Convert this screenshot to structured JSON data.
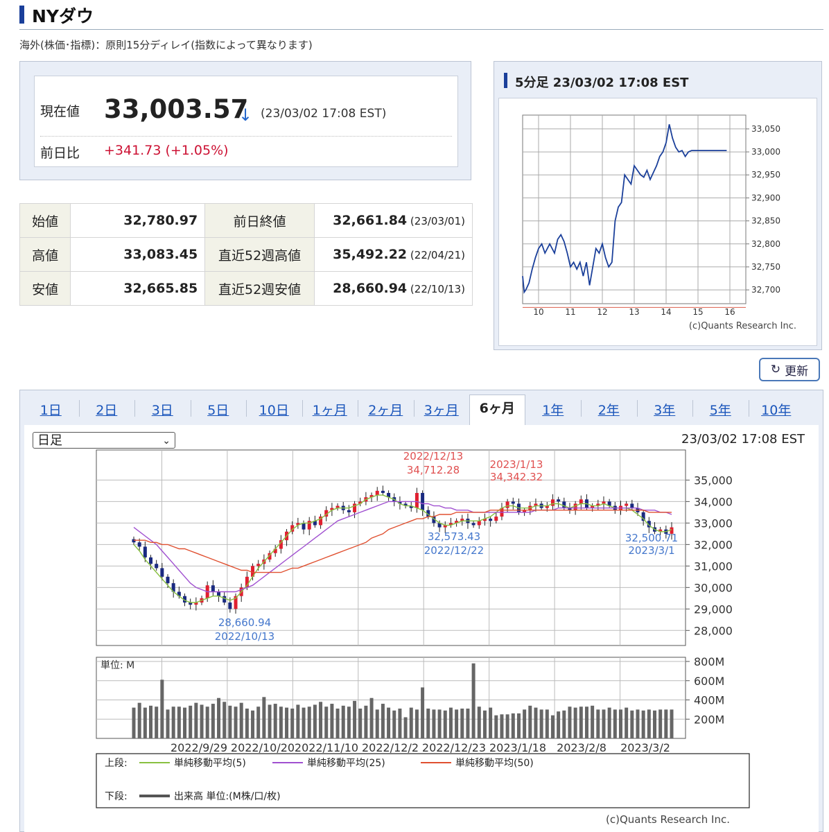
{
  "page": {
    "title": "NYダウ",
    "note": "海外(株価･指標)：原則15分ディレイ(指数によって異なります)"
  },
  "quote": {
    "current_label": "現在値",
    "current_value": "33,003.57",
    "arrow": "↓",
    "current_time": "(23/03/02 17:08 EST)",
    "change_label": "前日比",
    "change_value": "+341.73 (+1.05%)",
    "change_color": "#cc1133"
  },
  "stats": [
    {
      "l1": "始値",
      "v1": "32,780.97",
      "l2": "前日終値",
      "v2": "32,661.84",
      "d2": "(23/03/01)"
    },
    {
      "l1": "高値",
      "v1": "33,083.45",
      "l2": "直近52週高値",
      "v2": "35,492.22",
      "d2": "(22/04/21)"
    },
    {
      "l1": "安値",
      "v1": "32,665.85",
      "l2": "直近52週安値",
      "v2": "28,660.94",
      "d2": "(22/10/13)"
    }
  ],
  "intraday": {
    "title": "5分足 23/03/02 17:08 EST",
    "credit": "(c)Quants Research Inc.",
    "chart_data": {
      "type": "line",
      "x_ticks": [
        "10",
        "11",
        "12",
        "13",
        "14",
        "15",
        "16"
      ],
      "y_ticks": [
        "33,050",
        "33,000",
        "32,950",
        "32,900",
        "32,850",
        "32,800",
        "32,750",
        "32,700"
      ],
      "ylim": [
        32670,
        33080
      ],
      "xlim": [
        9.5,
        16.5
      ],
      "prev_close": 32661.84,
      "series_color": "#1a3f9a",
      "x": [
        9.5,
        9.55,
        9.6,
        9.7,
        9.8,
        9.9,
        10.0,
        10.1,
        10.2,
        10.35,
        10.5,
        10.6,
        10.7,
        10.8,
        10.9,
        11.0,
        11.1,
        11.2,
        11.3,
        11.4,
        11.5,
        11.6,
        11.7,
        11.8,
        11.9,
        12.0,
        12.1,
        12.2,
        12.3,
        12.4,
        12.5,
        12.6,
        12.7,
        12.8,
        12.9,
        13.0,
        13.1,
        13.2,
        13.3,
        13.4,
        13.5,
        13.6,
        13.7,
        13.8,
        13.9,
        14.0,
        14.1,
        14.2,
        14.3,
        14.4,
        14.5,
        14.6,
        14.7,
        14.8,
        14.9,
        15.0,
        15.1,
        15.2,
        15.3,
        15.4,
        15.5,
        15.6,
        15.7,
        15.8,
        15.9
      ],
      "y": [
        32730,
        32695,
        32700,
        32715,
        32745,
        32770,
        32790,
        32800,
        32780,
        32800,
        32780,
        32810,
        32820,
        32805,
        32780,
        32750,
        32760,
        32745,
        32760,
        32730,
        32760,
        32710,
        32750,
        32790,
        32780,
        32800,
        32770,
        32750,
        32760,
        32850,
        32880,
        32890,
        32950,
        32940,
        32930,
        32970,
        32960,
        32950,
        32945,
        32960,
        32940,
        32955,
        32970,
        32990,
        33000,
        33020,
        33060,
        33030,
        33010,
        33000,
        33003,
        32990,
        33000,
        33003,
        33003,
        33003,
        33003,
        33003,
        33003,
        33003,
        33003,
        33003,
        33003,
        33003,
        33003
      ]
    }
  },
  "refresh_label": "更新",
  "tabs": [
    "1日",
    "2日",
    "3日",
    "5日",
    "10日",
    "1ヶ月",
    "2ヶ月",
    "3ヶ月",
    "6ヶ月",
    "1年",
    "2年",
    "3年",
    "5年",
    "10年"
  ],
  "active_tab": "6ヶ月",
  "daily": {
    "select_value": "日足",
    "time": "23/03/02 17:08 EST",
    "credit": "(c)Quants Research Inc.",
    "chart_data": {
      "type": "candlestick",
      "y_ticks": [
        "35,000",
        "34,000",
        "33,000",
        "32,000",
        "31,000",
        "30,000",
        "29,000",
        "28,000"
      ],
      "ylim": [
        27300,
        36400
      ],
      "x_labels": [
        "2022/9/29",
        "2022/10/20",
        "2022/11/10",
        "2022/12/2",
        "2022/12/23",
        "2023/1/18",
        "2023/2/8",
        "2023/3/2"
      ],
      "annotations": [
        {
          "text": "2022/12/13",
          "value": "34,712.28",
          "color": "#e05050",
          "kind": "high"
        },
        {
          "text": "2023/1/13",
          "value": "34,342.32",
          "color": "#e05050",
          "kind": "high"
        },
        {
          "text": "32,573.43",
          "value": "2022/12/22",
          "color": "#4477cc",
          "kind": "low"
        },
        {
          "text": "32,500.71",
          "value": "2023/3/1",
          "color": "#4477cc",
          "kind": "low"
        },
        {
          "text": "28,660.94",
          "value": "2022/10/13",
          "color": "#4477cc",
          "kind": "low"
        }
      ],
      "close": [
        32100,
        31900,
        31400,
        31100,
        30900,
        30500,
        30200,
        29800,
        29600,
        29300,
        29200,
        29300,
        29500,
        30100,
        29800,
        29600,
        29300,
        29000,
        29600,
        30000,
        30500,
        31000,
        31100,
        31300,
        31600,
        31800,
        32200,
        32600,
        32900,
        33000,
        32700,
        33100,
        32900,
        33300,
        33600,
        33700,
        33800,
        33600,
        33500,
        33900,
        34000,
        34200,
        34300,
        34500,
        34400,
        34200,
        34000,
        33900,
        33800,
        33700,
        34400,
        33600,
        33300,
        33000,
        32800,
        32900,
        33000,
        33100,
        33200,
        33000,
        32900,
        33100,
        33200,
        33100,
        33300,
        33700,
        34000,
        33900,
        33500,
        33600,
        33800,
        33900,
        33700,
        33800,
        34100,
        34000,
        33700,
        33600,
        33900,
        34100,
        33700,
        33800,
        33900,
        34000,
        33800,
        33600,
        33800,
        33900,
        33700,
        33500,
        33100,
        32800,
        32600,
        32700,
        32500,
        32800
      ],
      "ma": [
        {
          "name": "単純移動平均(5)",
          "color": "#88c040",
          "values": [
            32000,
            31700,
            31300,
            31000,
            30700,
            30400,
            30100,
            29800,
            29600,
            29400,
            29300,
            29300,
            29400,
            29500,
            29600,
            29600,
            29500,
            29400,
            29500,
            29800,
            30100,
            30500,
            30900,
            31200,
            31500,
            31800,
            32100,
            32400,
            32700,
            32900,
            33000,
            33000,
            33100,
            33200,
            33400,
            33600,
            33700,
            33700,
            33700,
            33800,
            33900,
            34100,
            34200,
            34300,
            34300,
            34200,
            34100,
            33900,
            33800,
            33800,
            33700,
            33600,
            33400,
            33200,
            33000,
            32900,
            32900,
            33000,
            33100,
            33100,
            33100,
            33100,
            33200,
            33300,
            33500,
            33700,
            33800,
            33800,
            33700,
            33700,
            33700,
            33800,
            33800,
            33800,
            33900,
            33900,
            33800,
            33700,
            33800,
            33900,
            33900,
            33800,
            33800,
            33900,
            33800,
            33700,
            33700,
            33700,
            33600,
            33400,
            33200,
            32900,
            32700,
            32600,
            32600,
            32700
          ]
        },
        {
          "name": "単純移動平均(25)",
          "color": "#a050d0",
          "values": [
            32800,
            32600,
            32400,
            32200,
            32000,
            31700,
            31400,
            31100,
            30800,
            30500,
            30200,
            30000,
            29900,
            29800,
            29800,
            29800,
            29800,
            29800,
            29800,
            29900,
            30000,
            30100,
            30300,
            30500,
            30700,
            30900,
            31100,
            31300,
            31500,
            31700,
            31900,
            32100,
            32300,
            32500,
            32700,
            32900,
            33100,
            33200,
            33300,
            33400,
            33500,
            33600,
            33700,
            33800,
            33900,
            34000,
            34000,
            34000,
            34000,
            34000,
            34000,
            33900,
            33900,
            33800,
            33800,
            33700,
            33700,
            33600,
            33600,
            33600,
            33500,
            33500,
            33500,
            33500,
            33500,
            33500,
            33500,
            33500,
            33500,
            33500,
            33500,
            33600,
            33600,
            33600,
            33600,
            33700,
            33700,
            33700,
            33700,
            33700,
            33700,
            33700,
            33700,
            33700,
            33700,
            33700,
            33700,
            33700,
            33700,
            33700,
            33600,
            33600,
            33600,
            33500,
            33500,
            33400
          ]
        },
        {
          "name": "単純移動平均(50)",
          "color": "#e05030",
          "values": [
            32200,
            32200,
            32200,
            32100,
            32100,
            32000,
            32000,
            31900,
            31800,
            31800,
            31700,
            31600,
            31500,
            31400,
            31300,
            31200,
            31100,
            31000,
            30900,
            30800,
            30800,
            30700,
            30700,
            30700,
            30700,
            30700,
            30700,
            30800,
            30900,
            30900,
            31000,
            31100,
            31200,
            31300,
            31400,
            31500,
            31600,
            31700,
            31800,
            31900,
            32000,
            32100,
            32300,
            32400,
            32500,
            32700,
            32800,
            32900,
            33000,
            33100,
            33200,
            33200,
            33300,
            33300,
            33400,
            33400,
            33400,
            33500,
            33500,
            33500,
            33500,
            33500,
            33500,
            33600,
            33600,
            33600,
            33600,
            33600,
            33600,
            33600,
            33600,
            33600,
            33600,
            33600,
            33600,
            33600,
            33600,
            33600,
            33600,
            33600,
            33600,
            33600,
            33600,
            33600,
            33600,
            33600,
            33600,
            33600,
            33600,
            33600,
            33600,
            33500,
            33500,
            33500,
            33500,
            33500
          ]
        }
      ],
      "volume_unit_label": "単位: M",
      "volume_ticks": [
        "800M",
        "600M",
        "400M",
        "200M"
      ],
      "volume_max": 800,
      "volume": [
        320,
        370,
        320,
        340,
        330,
        610,
        300,
        330,
        330,
        320,
        340,
        370,
        350,
        330,
        360,
        420,
        380,
        340,
        330,
        370,
        310,
        290,
        330,
        430,
        350,
        360,
        330,
        320,
        310,
        350,
        320,
        330,
        350,
        380,
        330,
        360,
        310,
        340,
        330,
        390,
        310,
        340,
        420,
        300,
        360,
        320,
        290,
        310,
        220,
        320,
        300,
        530,
        310,
        300,
        300,
        290,
        320,
        300,
        310,
        310,
        780,
        330,
        290,
        320,
        240,
        250,
        250,
        260,
        260,
        300,
        340,
        320,
        300,
        300,
        240,
        280,
        290,
        330,
        320,
        330,
        330,
        340,
        300,
        300,
        320,
        300,
        300,
        320,
        290,
        300,
        290,
        300,
        290,
        300,
        300,
        300
      ],
      "legend": {
        "upper_label": "上段:",
        "lower_label": "下段:",
        "volume_label": "出来高 単位:(M株/口/枚)"
      }
    }
  }
}
